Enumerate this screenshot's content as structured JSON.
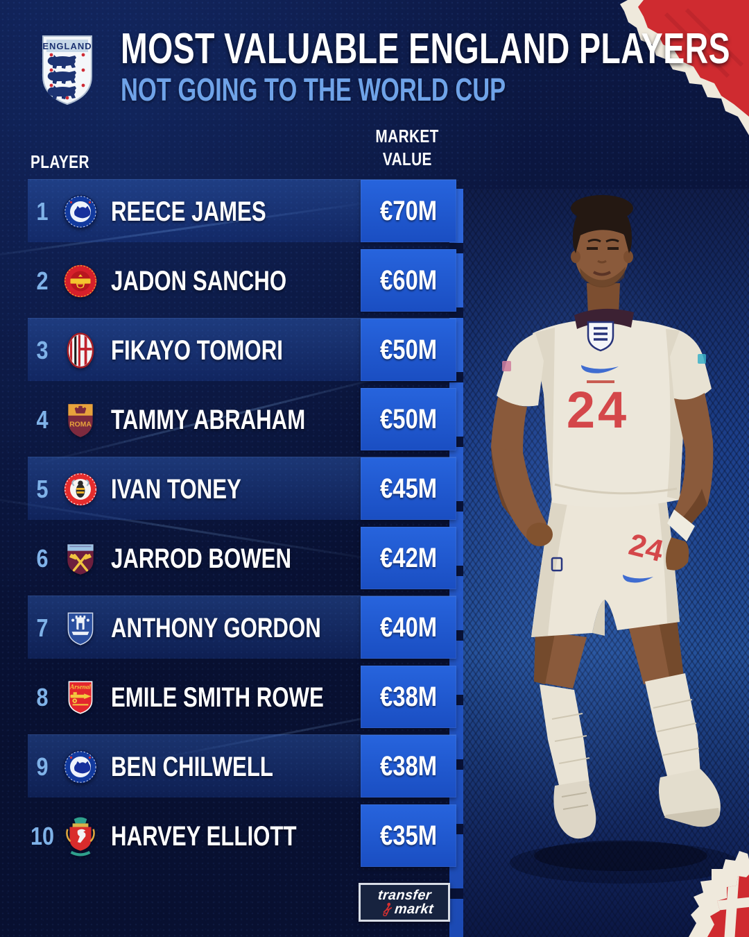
{
  "header": {
    "badge_label": "ENGLAND",
    "title": "MOST VALUABLE ENGLAND PLAYERS",
    "subtitle": "NOT GOING TO THE WORLD CUP"
  },
  "table": {
    "player_col_label": "PLAYER",
    "value_col_lines": [
      "MARKET",
      "VALUE"
    ],
    "rows": [
      {
        "rank": "1",
        "club": "chelsea",
        "player": "REECE JAMES",
        "value": "€70M"
      },
      {
        "rank": "2",
        "club": "manchester-united",
        "player": "JADON SANCHO",
        "value": "€60M"
      },
      {
        "rank": "3",
        "club": "ac-milan",
        "player": "FIKAYO TOMORI",
        "value": "€50M"
      },
      {
        "rank": "4",
        "club": "roma",
        "player": "TAMMY ABRAHAM",
        "value": "€50M"
      },
      {
        "rank": "5",
        "club": "brentford",
        "player": "IVAN TONEY",
        "value": "€45M"
      },
      {
        "rank": "6",
        "club": "west-ham",
        "player": "JARROD BOWEN",
        "value": "€42M"
      },
      {
        "rank": "7",
        "club": "everton",
        "player": "ANTHONY GORDON",
        "value": "€40M"
      },
      {
        "rank": "8",
        "club": "arsenal",
        "player": "EMILE SMITH ROWE",
        "value": "€38M"
      },
      {
        "rank": "9",
        "club": "chelsea",
        "player": "BEN CHILWELL",
        "value": "€38M"
      },
      {
        "rank": "10",
        "club": "liverpool",
        "player": "HARVEY ELLIOTT",
        "value": "€35M"
      }
    ]
  },
  "chart_data": {
    "type": "table",
    "title": "MOST VALUABLE ENGLAND PLAYERS",
    "subtitle": "NOT GOING TO THE WORLD CUP",
    "columns": [
      "PLAYER",
      "MARKET VALUE"
    ],
    "categories": [
      "REECE JAMES",
      "JADON SANCHO",
      "FIKAYO TOMORI",
      "TAMMY ABRAHAM",
      "IVAN TONEY",
      "JARROD BOWEN",
      "ANTHONY GORDON",
      "EMILE SMITH ROWE",
      "BEN CHILWELL",
      "HARVEY ELLIOTT"
    ],
    "values_million_eur": [
      70,
      60,
      50,
      50,
      45,
      42,
      40,
      38,
      38,
      35
    ],
    "value_labels": [
      "€70M",
      "€60M",
      "€50M",
      "€50M",
      "€45M",
      "€42M",
      "€40M",
      "€38M",
      "€38M",
      "€35M"
    ],
    "clubs": [
      "Chelsea",
      "Manchester United",
      "AC Milan",
      "Roma",
      "Brentford",
      "West Ham",
      "Everton",
      "Arsenal",
      "Chelsea",
      "Liverpool"
    ]
  },
  "player_photo": {
    "shirt_number": "24"
  },
  "footer": {
    "logo_line1": "transfer",
    "logo_line2": "markt"
  },
  "colors": {
    "background": "#0B1640",
    "row_highlight": "#1B3D8C",
    "value_box": "#1F58CE",
    "rank_text": "#7FB2E8",
    "subtitle": "#6FA3E8",
    "torn_corner_red": "#CF2B30"
  }
}
